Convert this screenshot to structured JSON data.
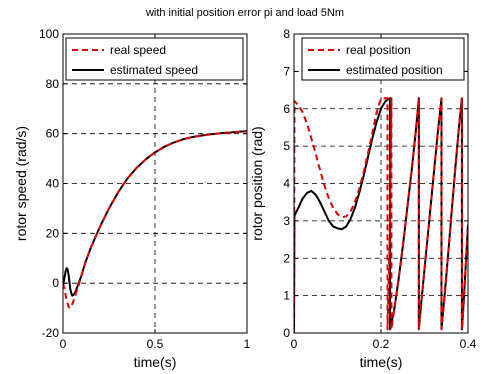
{
  "figure": {
    "title": "with initial position error pi and load 5Nm"
  },
  "chart_data": [
    {
      "type": "line",
      "xlabel": "time(s)",
      "ylabel": "rotor speed (rad/s)",
      "xlim": [
        0,
        1
      ],
      "ylim": [
        -20,
        100
      ],
      "xticks": [
        0,
        0.5,
        1
      ],
      "xtick_labels": [
        "0",
        "0.5",
        "1"
      ],
      "yticks": [
        -20,
        0,
        20,
        40,
        60,
        80,
        100
      ],
      "ytick_labels": [
        "-20",
        "0",
        "20",
        "40",
        "60",
        "80",
        "100"
      ],
      "grid": true,
      "legend_position": "top-right",
      "series": [
        {
          "name": "real speed",
          "color": "#dd0000",
          "style": "dashed",
          "x": [
            0,
            0.01,
            0.02,
            0.03,
            0.04,
            0.05,
            0.06,
            0.07,
            0.08,
            0.1,
            0.12,
            0.15,
            0.2,
            0.25,
            0.3,
            0.35,
            0.4,
            0.45,
            0.5,
            0.55,
            0.6,
            0.65,
            0.7,
            0.75,
            0.8,
            0.85,
            0.9,
            0.95,
            1.0
          ],
          "y": [
            0,
            -3,
            -7,
            -9.5,
            -10,
            -8.5,
            -6.5,
            -4,
            -2,
            3,
            8,
            14,
            22.5,
            30,
            36.5,
            42,
            46.3,
            49.7,
            52.5,
            54.7,
            56.4,
            57.7,
            58.6,
            59.2,
            59.7,
            60.1,
            60.4,
            60.7,
            61
          ]
        },
        {
          "name": "estimated speed",
          "color": "#000000",
          "style": "solid",
          "x": [
            0,
            0.005,
            0.01,
            0.015,
            0.02,
            0.025,
            0.03,
            0.035,
            0.04,
            0.045,
            0.05,
            0.06,
            0.07,
            0.08,
            0.09,
            0.1,
            0.12,
            0.15,
            0.2,
            0.25,
            0.3,
            0.35,
            0.4,
            0.45,
            0.5,
            0.55,
            0.6,
            0.65,
            0.7,
            0.75,
            0.8,
            0.85,
            0.9,
            0.95,
            1.0
          ],
          "y": [
            -1,
            1,
            3,
            5,
            6,
            5.5,
            3.5,
            0.5,
            -2.5,
            -4,
            -5,
            -4.5,
            -3,
            -1,
            1,
            3,
            8,
            14,
            22.5,
            30,
            36.5,
            42,
            46.3,
            49.7,
            52.5,
            54.7,
            56.4,
            57.7,
            58.6,
            59.2,
            59.7,
            60.1,
            60.4,
            60.7,
            61
          ]
        }
      ]
    },
    {
      "type": "line",
      "xlabel": "time(s)",
      "ylabel": "rotor position (rad)",
      "xlim": [
        0,
        0.4
      ],
      "ylim": [
        0,
        8
      ],
      "xticks": [
        0,
        0.2,
        0.4
      ],
      "xtick_labels": [
        "0",
        "0.2",
        "0.4"
      ],
      "yticks": [
        0,
        1,
        2,
        3,
        4,
        5,
        6,
        7,
        8
      ],
      "ytick_labels": [
        "0",
        "1",
        "2",
        "3",
        "4",
        "5",
        "6",
        "7",
        "8"
      ],
      "grid": true,
      "legend_position": "top-right",
      "series": [
        {
          "name": "real position",
          "color": "#dd0000",
          "style": "dashed",
          "x": [
            0,
            0.001,
            0.01,
            0.02,
            0.03,
            0.04,
            0.05,
            0.06,
            0.07,
            0.08,
            0.09,
            0.1,
            0.11,
            0.12,
            0.13,
            0.14,
            0.15,
            0.16,
            0.17,
            0.18,
            0.19,
            0.2,
            0.21,
            0.215,
            0.215,
            0.22,
            0.224,
            0.224,
            0.23,
            0.24,
            0.25,
            0.26,
            0.27,
            0.28,
            0.287,
            0.287,
            0.29,
            0.3,
            0.31,
            0.32,
            0.33,
            0.339,
            0.339,
            0.35,
            0.36,
            0.37,
            0.38,
            0.386,
            0.386,
            0.39,
            0.4
          ],
          "y": [
            0,
            6.2,
            6.1,
            5.9,
            5.6,
            5.2,
            4.8,
            4.35,
            3.95,
            3.6,
            3.35,
            3.18,
            3.1,
            3.12,
            3.25,
            3.5,
            3.85,
            4.3,
            4.8,
            5.35,
            5.9,
            6.28,
            6.28,
            6.28,
            0.1,
            2.5,
            6.28,
            0.1,
            0.6,
            1.4,
            2.3,
            3.3,
            4.3,
            5.4,
            6.28,
            0.1,
            0.5,
            1.7,
            2.9,
            4.1,
            5.3,
            6.28,
            0.1,
            1.5,
            2.9,
            4.3,
            5.6,
            6.28,
            0.1,
            0.8,
            2.9
          ]
        },
        {
          "name": "estimated position",
          "color": "#000000",
          "style": "solid",
          "x": [
            0,
            0.001,
            0.01,
            0.02,
            0.03,
            0.04,
            0.05,
            0.06,
            0.07,
            0.08,
            0.09,
            0.1,
            0.11,
            0.12,
            0.13,
            0.14,
            0.15,
            0.16,
            0.17,
            0.18,
            0.19,
            0.2,
            0.21,
            0.22,
            0.221,
            0.221,
            0.23,
            0.24,
            0.25,
            0.26,
            0.27,
            0.28,
            0.287,
            0.287,
            0.29,
            0.3,
            0.31,
            0.32,
            0.33,
            0.339,
            0.339,
            0.35,
            0.36,
            0.37,
            0.38,
            0.386,
            0.386,
            0.39,
            0.4
          ],
          "y": [
            0,
            3.14,
            3.35,
            3.6,
            3.75,
            3.8,
            3.7,
            3.5,
            3.25,
            3.0,
            2.85,
            2.8,
            2.78,
            2.85,
            3.05,
            3.35,
            3.75,
            4.2,
            4.7,
            5.2,
            5.65,
            6.0,
            6.2,
            6.28,
            6.28,
            0.1,
            0.6,
            1.4,
            2.3,
            3.3,
            4.3,
            5.4,
            6.28,
            0.1,
            0.5,
            1.7,
            2.9,
            4.1,
            5.3,
            6.28,
            0.1,
            1.5,
            2.9,
            4.3,
            5.6,
            6.28,
            0.1,
            0.8,
            2.9
          ]
        }
      ]
    }
  ]
}
